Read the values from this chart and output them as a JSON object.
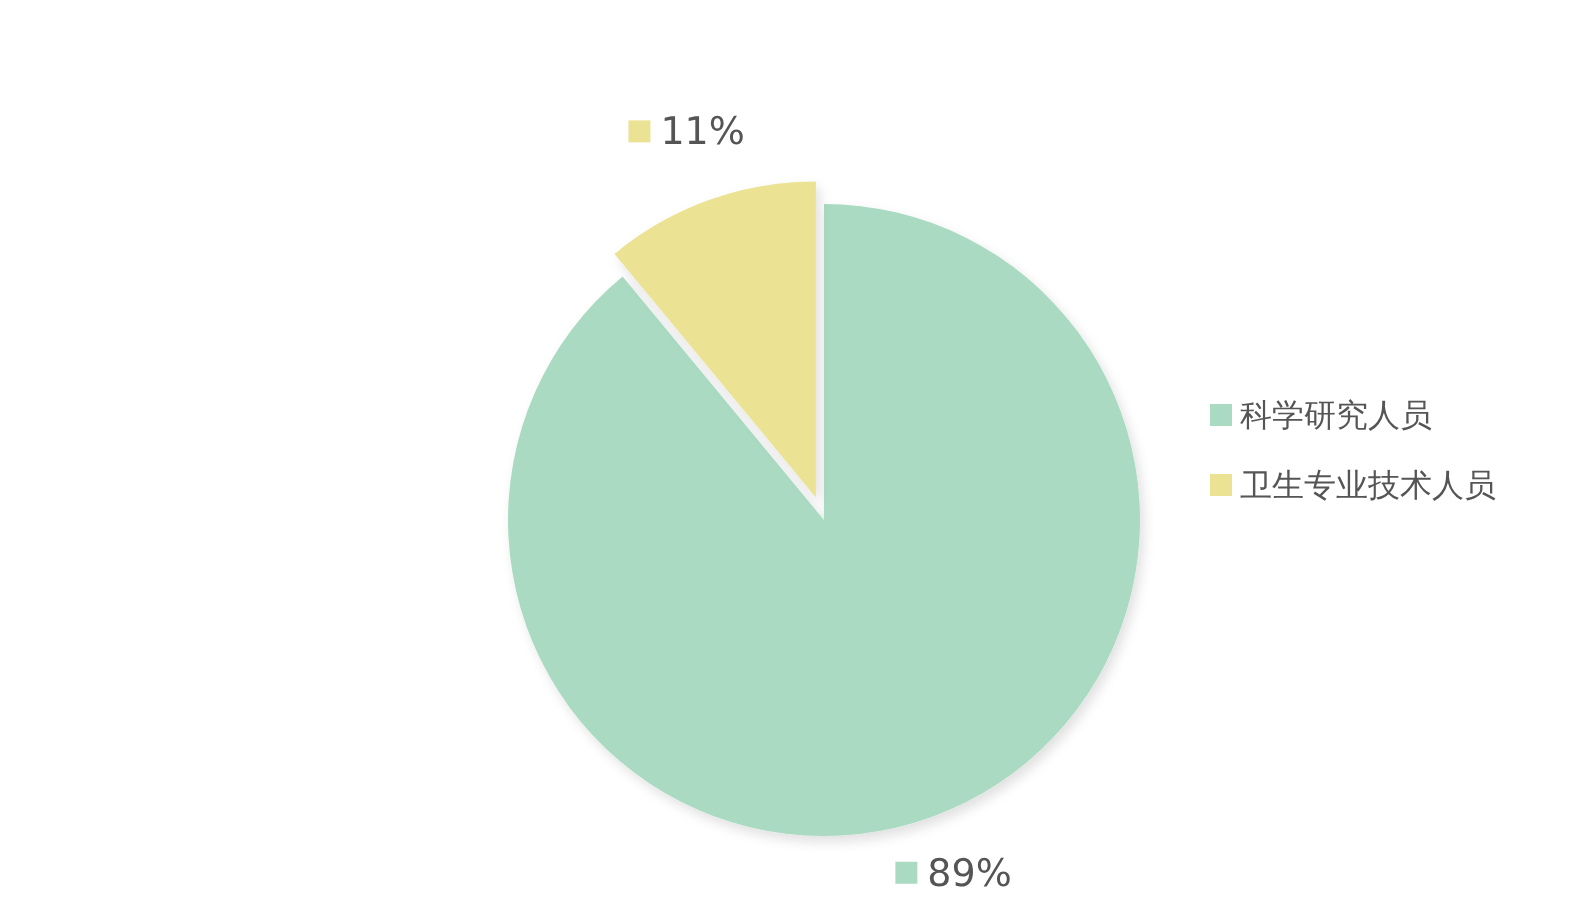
{
  "chart_data": {
    "type": "pie",
    "categories": [
      "科学研究人员",
      "卫生专业技术人员"
    ],
    "values": [
      89,
      11
    ],
    "colors": [
      "#aadbc2",
      "#ebe393"
    ],
    "value_labels": [
      "89%",
      "11%"
    ],
    "legend": "right"
  }
}
